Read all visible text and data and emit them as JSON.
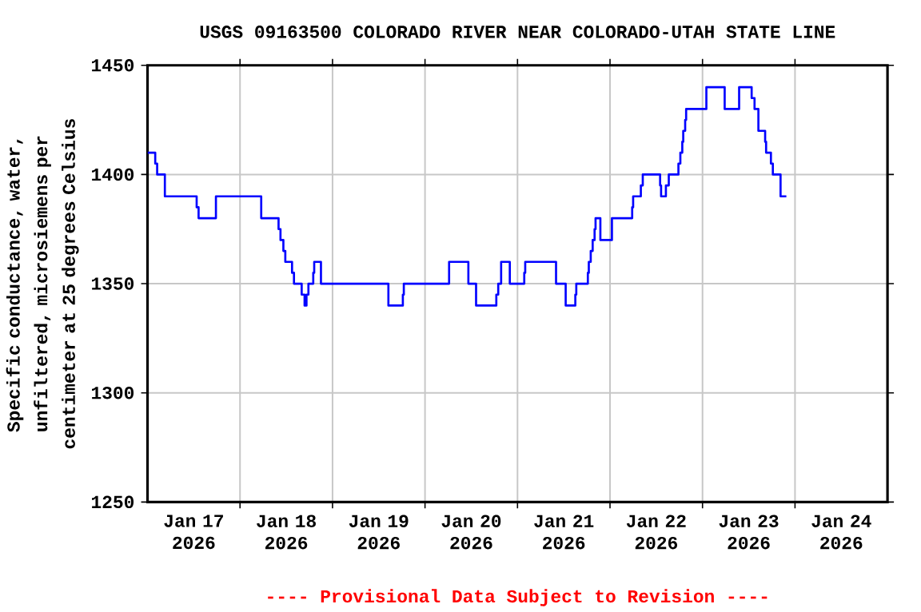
{
  "chart_data": {
    "type": "step",
    "title": "USGS 09163500 COLORADO RIVER NEAR COLORADO-UTAH STATE LINE",
    "ylabel": "Specific conductance, water, unfiltered, microsiemens per centimeter at 25 degrees Celsius",
    "annotations": [
      "---- Provisional Data Subject to Revision ----"
    ],
    "color": "#0000ff",
    "x": [
      "2026-01-17T00:00",
      "2026-01-17T02:00",
      "2026-01-17T02:30",
      "2026-01-17T04:30",
      "2026-01-17T12:45",
      "2026-01-17T13:15",
      "2026-01-17T17:45",
      "2026-01-18T05:30",
      "2026-01-18T10:00",
      "2026-01-18T10:30",
      "2026-01-18T11:15",
      "2026-01-18T11:45",
      "2026-01-18T13:30",
      "2026-01-18T14:00",
      "2026-01-18T16:00",
      "2026-01-18T16:45",
      "2026-01-18T17:15",
      "2026-01-18T17:45",
      "2026-01-18T19:00",
      "2026-01-18T19:15",
      "2026-01-18T21:00",
      "2026-01-19T14:30",
      "2026-01-19T18:15",
      "2026-01-19T18:30",
      "2026-01-20T06:15",
      "2026-01-20T11:15",
      "2026-01-20T13:15",
      "2026-01-20T18:30",
      "2026-01-20T19:00",
      "2026-01-20T19:45",
      "2026-01-20T22:00",
      "2026-01-21T01:45",
      "2026-01-21T02:00",
      "2026-01-21T10:00",
      "2026-01-21T12:30",
      "2026-01-21T15:00",
      "2026-01-21T15:15",
      "2026-01-21T18:15",
      "2026-01-21T18:30",
      "2026-01-21T19:00",
      "2026-01-21T19:30",
      "2026-01-21T20:00",
      "2026-01-21T20:15",
      "2026-01-21T21:30",
      "2026-01-22T00:30",
      "2026-01-22T05:45",
      "2026-01-22T06:00",
      "2026-01-22T08:00",
      "2026-01-22T08:30",
      "2026-01-22T13:00",
      "2026-01-22T13:15",
      "2026-01-22T14:30",
      "2026-01-22T15:15",
      "2026-01-22T17:45",
      "2026-01-22T18:15",
      "2026-01-22T18:45",
      "2026-01-22T19:00",
      "2026-01-22T19:30",
      "2026-01-22T19:45",
      "2026-01-23T01:00",
      "2026-01-23T05:45",
      "2026-01-23T09:30",
      "2026-01-23T12:45",
      "2026-01-23T13:30",
      "2026-01-23T14:30",
      "2026-01-23T16:15",
      "2026-01-23T16:30",
      "2026-01-23T17:45",
      "2026-01-23T18:15",
      "2026-01-23T20:15",
      "2026-01-23T21:45"
    ],
    "values": [
      1410,
      1405,
      1400,
      1390,
      1385,
      1380,
      1390,
      1380,
      1375,
      1370,
      1365,
      1360,
      1355,
      1350,
      1345,
      1340,
      1345,
      1350,
      1355,
      1360,
      1350,
      1340,
      1345,
      1350,
      1360,
      1350,
      1340,
      1345,
      1350,
      1360,
      1350,
      1355,
      1360,
      1350,
      1340,
      1345,
      1350,
      1355,
      1360,
      1365,
      1370,
      1375,
      1380,
      1370,
      1380,
      1385,
      1390,
      1395,
      1400,
      1395,
      1390,
      1395,
      1400,
      1405,
      1410,
      1415,
      1420,
      1425,
      1430,
      1440,
      1430,
      1440,
      1435,
      1430,
      1420,
      1415,
      1410,
      1405,
      1400,
      1390,
      1390
    ],
    "xlim": [
      "2026-01-17T00:00",
      "2026-01-25T00:00"
    ],
    "xticks": [
      {
        "value": "2026-01-18T00:00",
        "label": null
      },
      {
        "value": "2026-01-19T00:00",
        "label": null
      },
      {
        "value": "2026-01-20T00:00",
        "label": null
      },
      {
        "value": "2026-01-21T00:00",
        "label": null
      },
      {
        "value": "2026-01-22T00:00",
        "label": null
      },
      {
        "value": "2026-01-23T00:00",
        "label": null
      },
      {
        "value": "2026-01-24T00:00",
        "label": null
      },
      {
        "value": "2026-01-17T12:00",
        "label": "Jan 17 2026"
      },
      {
        "value": "2026-01-18T12:00",
        "label": "Jan 18 2026"
      },
      {
        "value": "2026-01-19T12:00",
        "label": "Jan 19 2026"
      },
      {
        "value": "2026-01-20T12:00",
        "label": "Jan 20 2026"
      },
      {
        "value": "2026-01-21T12:00",
        "label": "Jan 21 2026"
      },
      {
        "value": "2026-01-22T12:00",
        "label": "Jan 22 2026"
      },
      {
        "value": "2026-01-23T12:00",
        "label": "Jan 23 2026"
      },
      {
        "value": "2026-01-24T12:00",
        "label": "Jan 24 2026"
      }
    ],
    "ylim": [
      1250,
      1450
    ],
    "yticks": [
      1250,
      1300,
      1350,
      1400,
      1450
    ],
    "grid": true
  }
}
